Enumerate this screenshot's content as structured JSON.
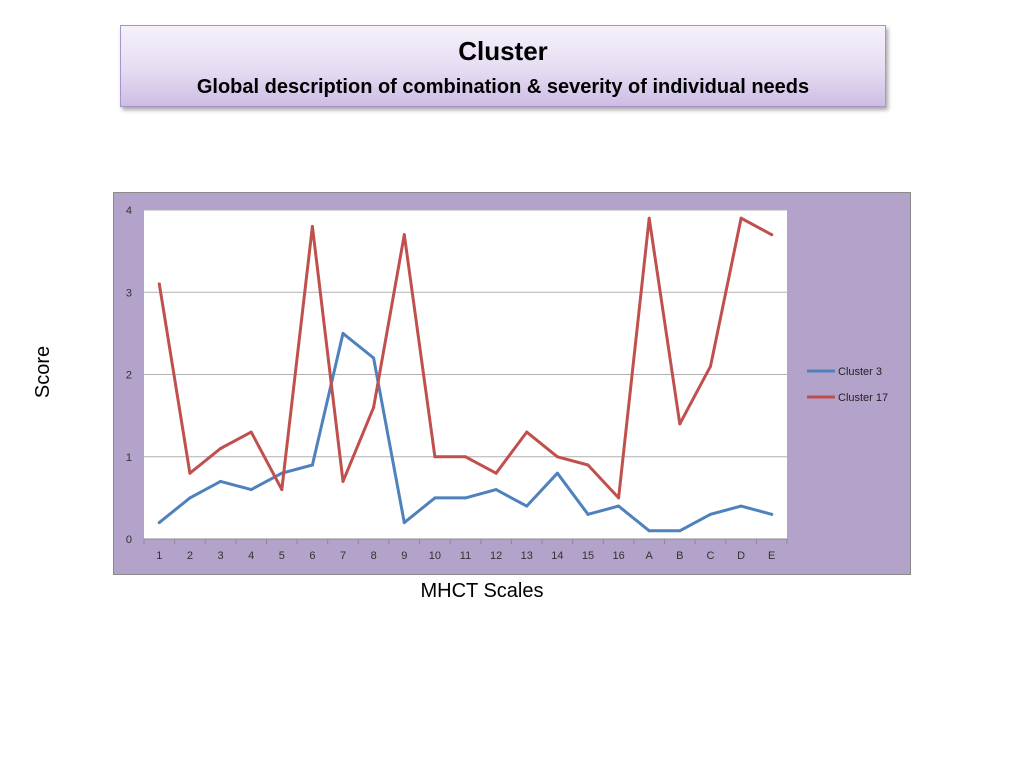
{
  "slide": {
    "title": "Cluster",
    "subtitle": "Global description of combination & severity of individual needs"
  },
  "colors": {
    "title_box": "#e6dcf2",
    "chart_background": "#b3a2c9",
    "plot_background": "#ffffff",
    "gridline": "#b0b0b0"
  },
  "chart_data": {
    "type": "line",
    "xlabel": "MHCT Scales",
    "ylabel": "Score",
    "ylim": [
      0,
      4
    ],
    "yticks": [
      0,
      1,
      2,
      3,
      4
    ],
    "grid": true,
    "legend_position": "right",
    "categories": [
      "1",
      "2",
      "3",
      "4",
      "5",
      "6",
      "7",
      "8",
      "9",
      "10",
      "11",
      "12",
      "13",
      "14",
      "15",
      "16",
      "A",
      "B",
      "C",
      "D",
      "E"
    ],
    "series": [
      {
        "name": "Cluster 3",
        "color": "#4f81bd",
        "values": [
          0.2,
          0.5,
          0.7,
          0.6,
          0.8,
          0.9,
          2.5,
          2.2,
          0.2,
          0.5,
          0.5,
          0.6,
          0.4,
          0.8,
          0.3,
          0.4,
          0.1,
          0.1,
          0.3,
          0.4,
          0.3
        ]
      },
      {
        "name": "Cluster 17",
        "color": "#c0504d",
        "values": [
          3.1,
          0.8,
          1.1,
          1.3,
          0.6,
          3.8,
          0.7,
          1.6,
          3.7,
          1.0,
          1.0,
          0.8,
          1.3,
          1.0,
          0.9,
          0.5,
          3.9,
          1.4,
          2.1,
          3.9,
          3.7
        ]
      }
    ]
  }
}
